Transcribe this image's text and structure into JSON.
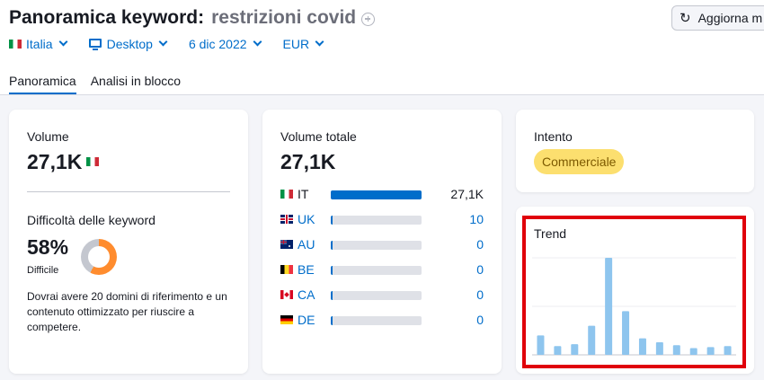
{
  "header": {
    "title_prefix": "Panoramica keyword:",
    "keyword": "restrizioni covid",
    "refresh_label": "Aggiorna m"
  },
  "filters": {
    "country": "Italia",
    "device": "Desktop",
    "date": "6 dic 2022",
    "currency": "EUR"
  },
  "tabs": [
    {
      "label": "Panoramica",
      "active": true
    },
    {
      "label": "Analisi in blocco",
      "active": false
    }
  ],
  "volume_card": {
    "label": "Volume",
    "value": "27,1K",
    "difficulty_label": "Difficoltà delle keyword",
    "difficulty_value": "58%",
    "difficulty_percent": 58,
    "difficulty_level": "Difficile",
    "difficulty_color": "#ff8c2e",
    "description": "Dovrai avere 20 domini di riferimento e un contenuto ottimizzato per riuscire a competere."
  },
  "total_volume_card": {
    "label": "Volume totale",
    "value": "27,1K",
    "countries": [
      {
        "code": "IT",
        "value": "27,1K",
        "share": 1.0,
        "flag": "flag-it"
      },
      {
        "code": "UK",
        "value": "10",
        "share": 0.02,
        "flag": "flag-uk"
      },
      {
        "code": "AU",
        "value": "0",
        "share": 0.02,
        "flag": "flag-au"
      },
      {
        "code": "BE",
        "value": "0",
        "share": 0.02,
        "flag": "flag-be"
      },
      {
        "code": "CA",
        "value": "0",
        "share": 0.02,
        "flag": "flag-ca"
      },
      {
        "code": "DE",
        "value": "0",
        "share": 0.02,
        "flag": "flag-de"
      }
    ]
  },
  "intent_card": {
    "label": "Intento",
    "value": "Commerciale"
  },
  "trend_card": {
    "label": "Trend"
  },
  "chart_data": {
    "type": "bar",
    "values": [
      0.2,
      0.09,
      0.11,
      0.3,
      1.0,
      0.45,
      0.17,
      0.13,
      0.1,
      0.07,
      0.08,
      0.09
    ],
    "ylim": [
      0,
      1
    ],
    "color": "#8ec5ee",
    "grid": true
  },
  "colors": {
    "accent": "#006dca",
    "highlight_border": "#e0000b",
    "intent_badge": "#fcdf6f"
  }
}
